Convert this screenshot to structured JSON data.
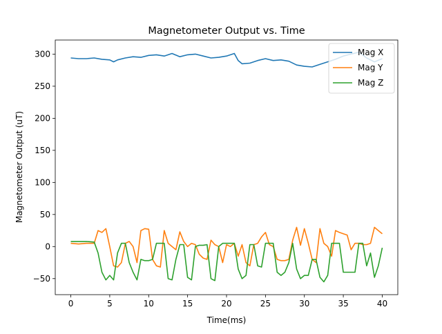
{
  "chart_data": {
    "type": "line",
    "title": "Magnetometer Output vs. Time",
    "xlabel": "Time(ms)",
    "ylabel": "Magnetometer Output (uT)",
    "xlim": [
      -2,
      42
    ],
    "ylim": [
      -75,
      322
    ],
    "xticks": [
      0,
      5,
      10,
      15,
      20,
      25,
      30,
      35,
      40
    ],
    "yticks": [
      -50,
      0,
      50,
      100,
      150,
      200,
      250,
      300
    ],
    "grid": false,
    "legend_position": "top-right",
    "series": [
      {
        "name": "Mag X",
        "color": "#1f77b4",
        "x": [
          0,
          1,
          2,
          3,
          4,
          5,
          5.5,
          6,
          7,
          8,
          9,
          10,
          11,
          12,
          13,
          14,
          15,
          16,
          17,
          18,
          19,
          20,
          21,
          21.5,
          22,
          23,
          24,
          25,
          26,
          27,
          28,
          29,
          30,
          31,
          32,
          33,
          34,
          35,
          36,
          37,
          38,
          39,
          40
        ],
        "y": [
          294,
          293,
          293,
          294,
          292,
          291,
          288,
          291,
          294,
          296,
          295,
          298,
          299,
          297,
          301,
          296,
          299,
          300,
          297,
          294,
          295,
          297,
          301,
          290,
          285,
          286,
          290,
          293,
          290,
          291,
          289,
          283,
          281,
          280,
          284,
          288,
          292,
          297,
          300,
          303,
          294,
          288,
          293
        ]
      },
      {
        "name": "Mag Y",
        "color": "#ff7f0e",
        "x": [
          0,
          1,
          2,
          3,
          3.5,
          4,
          4.5,
          5,
          5.5,
          6,
          6.5,
          7,
          7.5,
          8,
          8.5,
          9,
          9.5,
          10,
          10.5,
          11,
          11.5,
          12,
          12.5,
          13,
          13.5,
          14,
          14.5,
          15,
          15.5,
          16,
          16.5,
          17,
          17.5,
          18,
          18.5,
          19,
          19.5,
          20,
          20.5,
          21,
          21.5,
          22,
          22.5,
          23,
          23.5,
          24,
          24.5,
          25,
          25.5,
          26,
          26.5,
          27,
          27.5,
          28,
          28.5,
          29,
          29.5,
          30,
          30.5,
          31,
          31.5,
          32,
          32.5,
          33,
          33.5,
          34,
          34.5,
          35,
          35.5,
          36,
          36.5,
          37,
          37.5,
          38,
          38.5,
          39,
          39.5,
          40
        ],
        "y": [
          5,
          4,
          5,
          5,
          25,
          22,
          28,
          0,
          -30,
          -32,
          -25,
          5,
          8,
          0,
          -25,
          25,
          28,
          27,
          -20,
          -30,
          -32,
          25,
          5,
          0,
          -5,
          23,
          8,
          0,
          5,
          3,
          -12,
          -18,
          -20,
          10,
          3,
          0,
          -25,
          3,
          0,
          5,
          -15,
          3,
          -25,
          -30,
          3,
          5,
          15,
          22,
          3,
          0,
          -20,
          -22,
          -22,
          -20,
          10,
          30,
          2,
          28,
          5,
          -20,
          -25,
          28,
          5,
          0,
          -15,
          25,
          22,
          20,
          18,
          -5,
          5,
          5,
          3,
          3,
          5,
          30,
          25,
          20
        ]
      },
      {
        "name": "Mag Z",
        "color": "#2ca02c",
        "x": [
          0,
          1,
          2,
          3,
          3.5,
          4,
          4.5,
          5,
          5.5,
          6,
          6.5,
          7,
          7.5,
          8,
          8.5,
          9,
          9.5,
          10,
          10.5,
          11,
          11.5,
          12,
          12.5,
          13,
          13.5,
          14,
          14.5,
          15,
          15.5,
          16,
          16.5,
          17,
          17.5,
          18,
          18.5,
          19,
          19.5,
          20,
          20.5,
          21,
          21.5,
          22,
          22.5,
          23,
          23.5,
          24,
          24.5,
          25,
          25.5,
          26,
          26.5,
          27,
          27.5,
          28,
          28.5,
          29,
          29.5,
          30,
          30.5,
          31,
          31.5,
          32,
          32.5,
          33,
          33.5,
          34,
          34.5,
          35,
          35.5,
          36,
          36.5,
          37,
          37.5,
          38,
          38.5,
          39,
          39.5,
          40
        ],
        "y": [
          8,
          8,
          8,
          7,
          -10,
          -40,
          -52,
          -45,
          -52,
          -10,
          5,
          5,
          -25,
          -40,
          -52,
          -20,
          -22,
          -22,
          -20,
          5,
          5,
          5,
          -50,
          -52,
          -20,
          3,
          3,
          -48,
          -52,
          0,
          2,
          2,
          3,
          -50,
          -53,
          0,
          5,
          5,
          5,
          5,
          -35,
          -50,
          -45,
          3,
          3,
          -30,
          -32,
          5,
          5,
          5,
          -40,
          -45,
          -40,
          -25,
          5,
          -35,
          -50,
          -45,
          -45,
          -20,
          -20,
          -48,
          -55,
          -45,
          5,
          5,
          5,
          -40,
          -40,
          -40,
          -40,
          5,
          5,
          -30,
          -10,
          -48,
          -30,
          -2
        ]
      }
    ]
  }
}
